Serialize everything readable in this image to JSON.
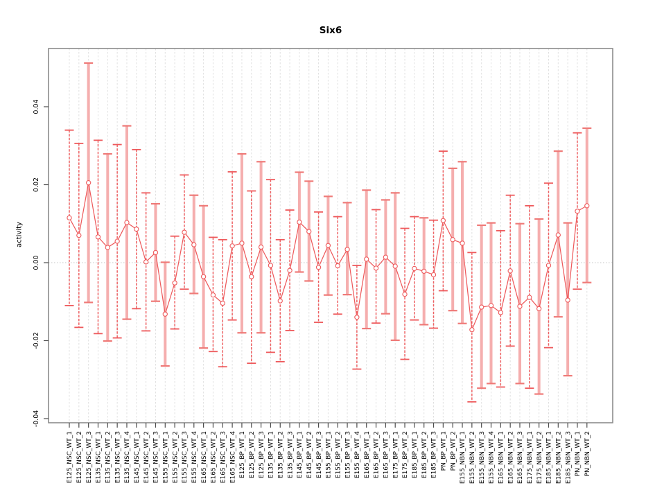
{
  "chart_data": {
    "type": "errorbar-line",
    "title": "Six6",
    "ylabel": "activity",
    "xlabel": "",
    "ylim": [
      -0.0411,
      0.0549
    ],
    "y_ticks": [
      -0.04,
      -0.02,
      0.0,
      0.02,
      0.04
    ],
    "grid": "vertical dashed gridline at every category; dotted horizontal line at y=0",
    "legend": "none",
    "marker": "open-circle",
    "categories": [
      "E125_NSC_WT_1",
      "E125_NSC_WT_2",
      "E125_NSC_WT_3",
      "E135_NSC_WT_1",
      "E135_NSC_WT_2",
      "E135_NSC_WT_3",
      "E135_NSC_WT_4",
      "E145_NSC_WT_1",
      "E145_NSC_WT_2",
      "E145_NSC_WT_3",
      "E155_NSC_WT_1",
      "E155_NSC_WT_2",
      "E155_NSC_WT_3",
      "E155_NSC_WT_4",
      "E165_NSC_WT_1",
      "E165_NSC_WT_2",
      "E165_NSC_WT_3",
      "E165_NSC_WT_4",
      "E125_BP_WT_1",
      "E125_BP_WT_2",
      "E125_BP_WT_3",
      "E135_BP_WT_1",
      "E135_BP_WT_2",
      "E135_BP_WT_3",
      "E145_BP_WT_1",
      "E145_BP_WT_2",
      "E145_BP_WT_3",
      "E155_BP_WT_1",
      "E155_BP_WT_2",
      "E155_BP_WT_3",
      "E155_BP_WT_4",
      "E165_BP_WT_1",
      "E165_BP_WT_2",
      "E165_BP_WT_3",
      "E175_BP_WT_1",
      "E175_BP_WT_2",
      "E185_BP_WT_1",
      "E185_BP_WT_2",
      "E185_BP_WT_3",
      "PN_BP_WT_1",
      "PN_BP_WT_2",
      "E155_NBN_WT_1",
      "E155_NBN_WT_2",
      "E155_NBN_WT_3",
      "E155_NBN_WT_4",
      "E165_NBN_WT_1",
      "E165_NBN_WT_2",
      "E165_NBN_WT_3",
      "E175_NBN_WT_1",
      "E175_NBN_WT_2",
      "E185_NBN_WT_1",
      "E185_NBN_WT_2",
      "E185_NBN_WT_3",
      "PN_NBN_WT_1",
      "PN_NBN_WT_2"
    ],
    "values": [
      0.0115,
      0.007,
      0.0205,
      0.0066,
      0.0039,
      0.0055,
      0.0103,
      0.0086,
      0.0002,
      0.0026,
      -0.0132,
      -0.0052,
      0.0078,
      0.0046,
      -0.0036,
      -0.0083,
      -0.0104,
      0.0043,
      0.005,
      -0.0036,
      0.004,
      -0.0007,
      -0.0098,
      -0.002,
      0.0104,
      0.008,
      -0.0012,
      0.0044,
      -0.0008,
      0.0034,
      -0.014,
      0.0009,
      -0.0014,
      0.0014,
      -0.0009,
      -0.0081,
      -0.0015,
      -0.0022,
      -0.0031,
      0.0108,
      0.0059,
      0.005,
      -0.0172,
      -0.0114,
      -0.011,
      -0.0128,
      -0.0021,
      -0.0112,
      -0.0089,
      -0.0118,
      -0.0007,
      0.0071,
      -0.0096,
      0.0132,
      0.0146
    ],
    "upper": [
      0.034,
      0.0306,
      0.0512,
      0.0314,
      0.0279,
      0.0303,
      0.0351,
      0.029,
      0.0179,
      0.0151,
      0.0001,
      0.0068,
      0.0225,
      0.0173,
      0.0146,
      0.0065,
      0.0059,
      0.0233,
      0.0279,
      0.0184,
      0.0259,
      0.0213,
      0.0059,
      0.0135,
      0.0232,
      0.0209,
      0.013,
      0.017,
      0.0118,
      0.0154,
      -0.0007,
      0.0186,
      0.0136,
      0.0161,
      0.0179,
      0.0088,
      0.0118,
      0.0115,
      0.0109,
      0.0286,
      0.0242,
      0.0259,
      0.0026,
      0.0096,
      0.0102,
      0.0082,
      0.0173,
      0.01,
      0.0146,
      0.0112,
      0.0204,
      0.0286,
      0.0102,
      0.0333,
      0.0345
    ],
    "lower": [
      -0.011,
      -0.0166,
      -0.0102,
      -0.0182,
      -0.0201,
      -0.0193,
      -0.0145,
      -0.0118,
      -0.0175,
      -0.0099,
      -0.0265,
      -0.017,
      -0.0068,
      -0.0079,
      -0.0219,
      -0.0228,
      -0.0267,
      -0.0147,
      -0.018,
      -0.0258,
      -0.018,
      -0.023,
      -0.0254,
      -0.0174,
      -0.0024,
      -0.0047,
      -0.0153,
      -0.0083,
      -0.0132,
      -0.0082,
      -0.0273,
      -0.0169,
      -0.0155,
      -0.0131,
      -0.0199,
      -0.0248,
      -0.0147,
      -0.0159,
      -0.0168,
      -0.0072,
      -0.0123,
      -0.0156,
      -0.0357,
      -0.0322,
      -0.031,
      -0.0319,
      -0.0214,
      -0.031,
      -0.0322,
      -0.0337,
      -0.0218,
      -0.0139,
      -0.029,
      -0.0068,
      -0.0051
    ],
    "bar_style": [
      "thin",
      "thin",
      "thick",
      "thin",
      "thick",
      "thin",
      "thick",
      "thin",
      "thin",
      "thick",
      "thick",
      "thin",
      "thin",
      "thick",
      "thick",
      "thin",
      "thin",
      "thin",
      "thick",
      "thin",
      "thick",
      "thin",
      "thin",
      "thin",
      "thick",
      "thick",
      "thin",
      "thick",
      "thin",
      "thick",
      "thin",
      "thick",
      "thin",
      "thick",
      "thick",
      "thin",
      "thin",
      "thick",
      "thin",
      "thin",
      "thick",
      "thick",
      "thin",
      "thick",
      "thick",
      "thin",
      "thin",
      "thick",
      "thin",
      "thick",
      "thin",
      "thick",
      "thick",
      "thin",
      "thick"
    ]
  },
  "style": {
    "series_color": "#ee5a5c",
    "thick_bar_color": "#f5aeae",
    "cap_color": "#ef7a78",
    "gridline_color": "#e0e0e0",
    "zero_line_color": "#c4c4c4",
    "box_color": "#8c8c8c",
    "tick_color": "#4d4d4d",
    "label_color": "#000000",
    "background": "#ffffff"
  }
}
